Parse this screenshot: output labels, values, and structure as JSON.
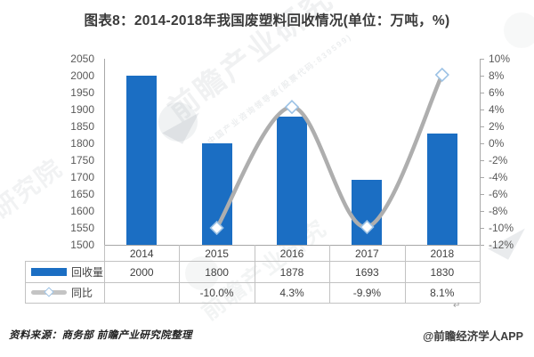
{
  "title": "图表8：2014-2018年我国废塑料回收情况(单位：万吨，%)",
  "footer": {
    "source": "资料来源：商务部 前瞻产业研究院整理",
    "credit": "@前瞻经济学人APP",
    "return_mark": "↵"
  },
  "watermarks": {
    "brand": "前瞻产业研究",
    "brand_partial": "业研究院",
    "tagline": "中国产业咨询领导者(股票代码:839599)"
  },
  "table": {
    "rows": [
      {
        "legend": "回收量",
        "cells": [
          "2000",
          "1800",
          "1878",
          "1693",
          "1830"
        ]
      },
      {
        "legend": "同比",
        "cells": [
          "",
          "-10.0%",
          "4.3%",
          "-9.9%",
          "8.1%"
        ]
      }
    ]
  },
  "chart_data": {
    "type": "bar+line",
    "title": "图表8：2014-2018年我国废塑料回收情况(单位：万吨，%)",
    "categories": [
      "2014",
      "2015",
      "2016",
      "2017",
      "2018"
    ],
    "series": [
      {
        "name": "回收量",
        "type": "bar",
        "axis": "left",
        "unit": "万吨",
        "color": "#1b6ec3",
        "values": [
          2000,
          1800,
          1878,
          1693,
          1830
        ]
      },
      {
        "name": "同比",
        "type": "line",
        "axis": "right",
        "unit": "%",
        "color": "#aeaeae",
        "marker": "diamond",
        "marker_stroke": "#9cc2e5",
        "values": [
          null,
          -10.0,
          4.3,
          -9.9,
          8.1
        ]
      }
    ],
    "left_axis": {
      "min": 1500,
      "max": 2050,
      "step": 50
    },
    "right_axis": {
      "min": -12,
      "max": 10,
      "step": 2,
      "suffix": "%"
    },
    "grid": false,
    "legend_position": "data-table-left"
  }
}
